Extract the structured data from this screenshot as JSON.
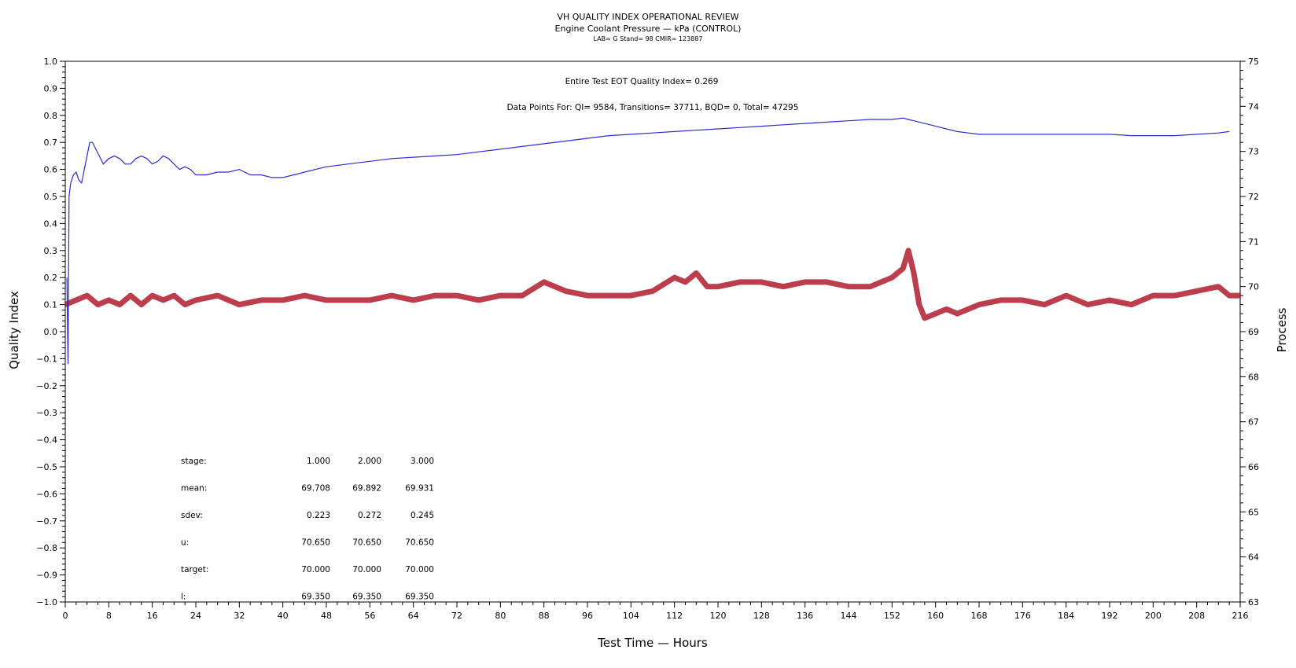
{
  "titles": {
    "main": "VH QUALITY INDEX OPERATIONAL REVIEW",
    "sub": "Engine Coolant Pressure — kPa (CONTROL)",
    "info": "LAB= G Stand= 98 CMIR= 123887"
  },
  "annotations": {
    "eot": "Entire Test EOT Quality Index=   0.269",
    "counts": "Data Points For: QI=  9584, Transitions= 37711, BQD=     0, Total= 47295"
  },
  "stats_table": {
    "rows": [
      {
        "label": "stage:",
        "values": [
          "1.000",
          "2.000",
          "3.000"
        ]
      },
      {
        "label": "mean:",
        "values": [
          "69.708",
          "69.892",
          "69.931"
        ]
      },
      {
        "label": "sdev:",
        "values": [
          "0.223",
          "0.272",
          "0.245"
        ]
      },
      {
        "label": "u:",
        "values": [
          "70.650",
          "70.650",
          "70.650"
        ]
      },
      {
        "label": "target:",
        "values": [
          "70.000",
          "70.000",
          "70.000"
        ]
      },
      {
        "label": "l:",
        "values": [
          "69.350",
          "69.350",
          "69.350"
        ]
      }
    ]
  },
  "chart_data": {
    "type": "line",
    "title": "VH QUALITY INDEX OPERATIONAL REVIEW",
    "subtitle": "Engine Coolant Pressure — kPa (CONTROL)",
    "xlabel": "Test Time — Hours",
    "ylabel": "Quality Index",
    "y2label": "Process",
    "xlim": [
      0,
      216
    ],
    "ylim": [
      -1.0,
      1.0
    ],
    "y2lim": [
      63,
      75
    ],
    "xticks": [
      "0",
      "8",
      "16",
      "24",
      "32",
      "40",
      "48",
      "56",
      "64",
      "72",
      "80",
      "88",
      "96",
      "104",
      "112",
      "120",
      "128",
      "136",
      "144",
      "152",
      "160",
      "168",
      "176",
      "184",
      "192",
      "200",
      "208",
      "216"
    ],
    "yticks": [
      "−1.0",
      "−0.9",
      "−0.8",
      "−0.7",
      "−0.6",
      "−0.5",
      "−0.4",
      "−0.3",
      "−0.2",
      "−0.1",
      "0.0",
      "0.1",
      "0.2",
      "0.3",
      "0.4",
      "0.5",
      "0.6",
      "0.7",
      "0.8",
      "0.9",
      "1.0"
    ],
    "y2ticks": [
      "63",
      "64",
      "65",
      "66",
      "67",
      "68",
      "69",
      "70",
      "71",
      "72",
      "73",
      "74",
      "75"
    ],
    "grid": false,
    "colors": {
      "quality_index": "#2b2bd6",
      "process": "#b01c2e"
    },
    "series": [
      {
        "axis": "left",
        "x": [
          0.3,
          0.5,
          0.7,
          1.0,
          1.5,
          2.0,
          2.5,
          3.0,
          3.5,
          4.0,
          4.5,
          5.0,
          6.0,
          7.0,
          8.0,
          9.0,
          10.0,
          11.0,
          12.0,
          13.0,
          14.0,
          15.0,
          16.0,
          17.0,
          18.0,
          19.0,
          20.0,
          21.0,
          22.0,
          23.0,
          24.0,
          26.0,
          28.0,
          30.0,
          32.0,
          34.0,
          36.0,
          38.0,
          40.0,
          42.0,
          44.0,
          46.0,
          48.0,
          52.0,
          56.0,
          60.0,
          64.0,
          68.0,
          72.0,
          76.0,
          80.0,
          84.0,
          88.0,
          92.0,
          96.0,
          100.0,
          104.0,
          108.0,
          112.0,
          116.0,
          120.0,
          124.0,
          128.0,
          132.0,
          136.0,
          140.0,
          144.0,
          148.0,
          152.0,
          154.0,
          155.0,
          156.0,
          158.0,
          160.0,
          162.0,
          164.0,
          166.0,
          168.0,
          172.0,
          176.0,
          180.0,
          184.0,
          188.0,
          192.0,
          196.0,
          200.0,
          204.0,
          208.0,
          212.0,
          214.0
        ],
        "values": [
          0.2,
          -0.12,
          0.5,
          0.55,
          0.58,
          0.59,
          0.56,
          0.55,
          0.6,
          0.65,
          0.7,
          0.7,
          0.66,
          0.62,
          0.64,
          0.65,
          0.64,
          0.62,
          0.62,
          0.64,
          0.65,
          0.64,
          0.62,
          0.63,
          0.65,
          0.64,
          0.62,
          0.6,
          0.61,
          0.6,
          0.58,
          0.58,
          0.59,
          0.59,
          0.6,
          0.58,
          0.58,
          0.57,
          0.57,
          0.58,
          0.59,
          0.6,
          0.61,
          0.62,
          0.63,
          0.64,
          0.645,
          0.65,
          0.655,
          0.665,
          0.675,
          0.685,
          0.695,
          0.705,
          0.715,
          0.725,
          0.73,
          0.735,
          0.74,
          0.745,
          0.75,
          0.755,
          0.76,
          0.765,
          0.77,
          0.775,
          0.78,
          0.785,
          0.785,
          0.79,
          0.785,
          0.78,
          0.77,
          0.76,
          0.75,
          0.74,
          0.735,
          0.73,
          0.73,
          0.73,
          0.73,
          0.73,
          0.73,
          0.73,
          0.725,
          0.725,
          0.725,
          0.73,
          0.735,
          0.74
        ]
      },
      {
        "axis": "right",
        "x": [
          0,
          2,
          4,
          6,
          8,
          10,
          12,
          14,
          16,
          18,
          20,
          22,
          24,
          28,
          32,
          36,
          40,
          44,
          48,
          52,
          56,
          60,
          64,
          68,
          72,
          76,
          80,
          84,
          88,
          92,
          96,
          100,
          104,
          108,
          112,
          114,
          116,
          118,
          120,
          124,
          128,
          132,
          136,
          140,
          144,
          148,
          150,
          152,
          154,
          155,
          156,
          157,
          158,
          160,
          162,
          164,
          168,
          172,
          176,
          180,
          184,
          188,
          192,
          196,
          200,
          204,
          208,
          212,
          214,
          216
        ],
        "values": [
          69.6,
          69.7,
          69.8,
          69.6,
          69.7,
          69.6,
          69.8,
          69.6,
          69.8,
          69.7,
          69.8,
          69.6,
          69.7,
          69.8,
          69.6,
          69.7,
          69.7,
          69.8,
          69.7,
          69.7,
          69.7,
          69.8,
          69.7,
          69.8,
          69.8,
          69.7,
          69.8,
          69.8,
          70.1,
          69.9,
          69.8,
          69.8,
          69.8,
          69.9,
          70.2,
          70.1,
          70.3,
          70.0,
          70.0,
          70.1,
          70.1,
          70.0,
          70.1,
          70.1,
          70.0,
          70.0,
          70.1,
          70.2,
          70.4,
          70.8,
          70.3,
          69.6,
          69.3,
          69.4,
          69.5,
          69.4,
          69.6,
          69.7,
          69.7,
          69.6,
          69.8,
          69.6,
          69.7,
          69.6,
          69.8,
          69.8,
          69.9,
          70.0,
          69.8,
          69.8
        ]
      }
    ]
  }
}
